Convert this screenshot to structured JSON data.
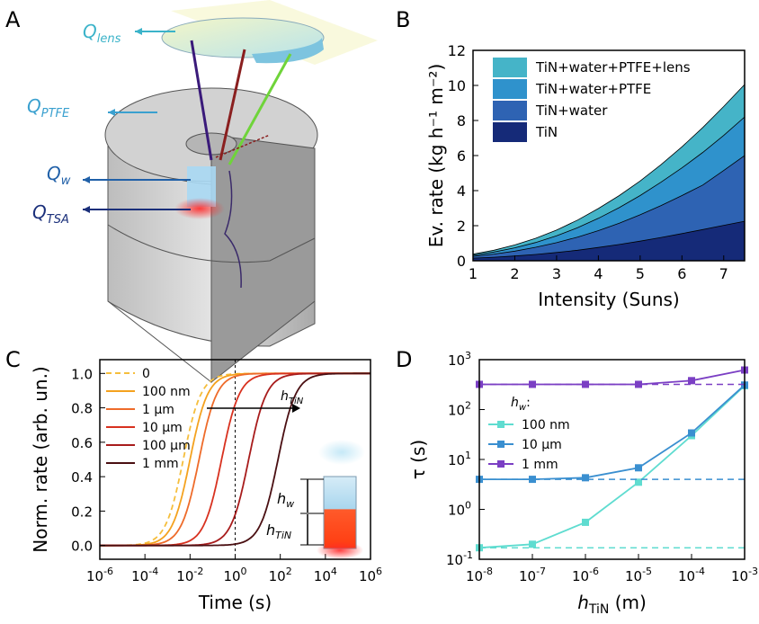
{
  "panels": {
    "A": {
      "letter": "A",
      "labels": {
        "q_lens": "Q",
        "q_lens_sub": "lens",
        "q_ptfe": "Q",
        "q_ptfe_sub": "PTFE",
        "q_w": "Q",
        "q_w_sub": "w",
        "q_tsa": "Q",
        "q_tsa_sub": "TSA"
      },
      "colors": {
        "lens": "#3bb3c9",
        "ptfe": "#3aa0cf",
        "w": "#2060a8",
        "tsa": "#1a2f7a"
      }
    },
    "B": {
      "letter": "B"
    },
    "C": {
      "letter": "C",
      "annotations": {
        "h_tin": "h",
        "h_tin_sub": "TiN",
        "h_w": "h",
        "h_w_sub": "w",
        "h_tin2": "h",
        "h_tin2_sub": "TiN"
      }
    },
    "D": {
      "letter": "D",
      "legend_title": "h",
      "legend_title_sub": "w",
      "legend_title_colon": ":"
    }
  },
  "chart_data": [
    {
      "panel": "B",
      "type": "area",
      "xlabel": "Intensity (Suns)",
      "ylabel": "Ev. rate (kg h⁻¹ m⁻²)",
      "xlim": [
        1,
        7.5
      ],
      "ylim": [
        0,
        12
      ],
      "xticks": [
        "1",
        "2",
        "3",
        "4",
        "5",
        "6",
        "7"
      ],
      "yticks": [
        "0",
        "2",
        "4",
        "6",
        "8",
        "10",
        "12"
      ],
      "legend_position": "top-left",
      "x": [
        1,
        1.5,
        2,
        2.5,
        3,
        3.5,
        4,
        4.5,
        5,
        5.5,
        6,
        6.5,
        7,
        7.5
      ],
      "series": [
        {
          "name": "TiN",
          "color": "#152a78",
          "values": [
            0.15,
            0.2,
            0.27,
            0.36,
            0.47,
            0.6,
            0.76,
            0.93,
            1.12,
            1.33,
            1.55,
            1.78,
            2.02,
            2.25
          ]
        },
        {
          "name": "TiN+water",
          "color": "#2e63b3",
          "values": [
            0.25,
            0.38,
            0.55,
            0.77,
            1.03,
            1.35,
            1.72,
            2.14,
            2.62,
            3.15,
            3.72,
            4.32,
            5.15,
            6.0
          ]
        },
        {
          "name": "TiN+water+PTFE",
          "color": "#2f92cc",
          "values": [
            0.32,
            0.5,
            0.74,
            1.04,
            1.42,
            1.88,
            2.42,
            3.03,
            3.72,
            4.48,
            5.3,
            6.18,
            7.15,
            8.2
          ]
        },
        {
          "name": "TiN+water+PTFE+lens",
          "color": "#45b4c8",
          "values": [
            0.38,
            0.6,
            0.9,
            1.28,
            1.75,
            2.32,
            2.98,
            3.72,
            4.55,
            5.48,
            6.5,
            7.6,
            8.8,
            10.05
          ]
        }
      ]
    },
    {
      "panel": "C",
      "type": "line",
      "xlabel": "Time (s)",
      "ylabel": "Norm. rate (arb. un.)",
      "xscale": "log",
      "xlim_exp": [
        -6,
        6
      ],
      "ylim": [
        -0.08,
        1.08
      ],
      "xticks_exp": [
        -6,
        -4,
        -2,
        0,
        2,
        4,
        6
      ],
      "yticks": [
        "0.0",
        "0.2",
        "0.4",
        "0.6",
        "0.8",
        "1.0"
      ],
      "vline_x": 1,
      "legend_position": "top-left",
      "series": [
        {
          "name": "0",
          "color": "#f5be3c",
          "dashed": true,
          "midpoint_log10_t": -2.3
        },
        {
          "name": "100 nm",
          "color": "#f4a21f",
          "dashed": false,
          "midpoint_log10_t": -2.0
        },
        {
          "name": "1 µm",
          "color": "#ee6b2a",
          "dashed": false,
          "midpoint_log10_t": -1.6
        },
        {
          "name": "10 µm",
          "color": "#d8311f",
          "dashed": false,
          "midpoint_log10_t": -0.6
        },
        {
          "name": "100 µm",
          "color": "#a81c1c",
          "dashed": false,
          "midpoint_log10_t": 0.6
        },
        {
          "name": "1 mm",
          "color": "#4a0f12",
          "dashed": false,
          "midpoint_log10_t": 1.9
        }
      ]
    },
    {
      "panel": "D",
      "type": "line",
      "xlabel": "h",
      "xlabel_sub": "TiN",
      "xlabel_unit": " (m)",
      "ylabel": "τ (s)",
      "xscale": "log",
      "yscale": "log",
      "xlim_exp": [
        -8,
        -3
      ],
      "ylim_exp": [
        -1,
        3
      ],
      "xticks_exp": [
        -8,
        -7,
        -6,
        -5,
        -4,
        -3
      ],
      "yticks_exp": [
        -1,
        0,
        1,
        2,
        3
      ],
      "legend_position": "center-left",
      "x_exp": [
        -8,
        -7,
        -6,
        -5,
        -4,
        -3
      ],
      "series": [
        {
          "name": "100 nm",
          "color": "#5fdcd0",
          "values": [
            0.17,
            0.2,
            0.55,
            3.5,
            30,
            300
          ],
          "baseline": 0.17
        },
        {
          "name": "10 µm",
          "color": "#3a8fd0",
          "values": [
            4.0,
            4.0,
            4.3,
            6.8,
            34,
            310
          ],
          "baseline": 4.0
        },
        {
          "name": "1 mm",
          "color": "#7b3fc4",
          "values": [
            320,
            320,
            320,
            320,
            380,
            620
          ],
          "baseline": 320
        }
      ]
    }
  ]
}
